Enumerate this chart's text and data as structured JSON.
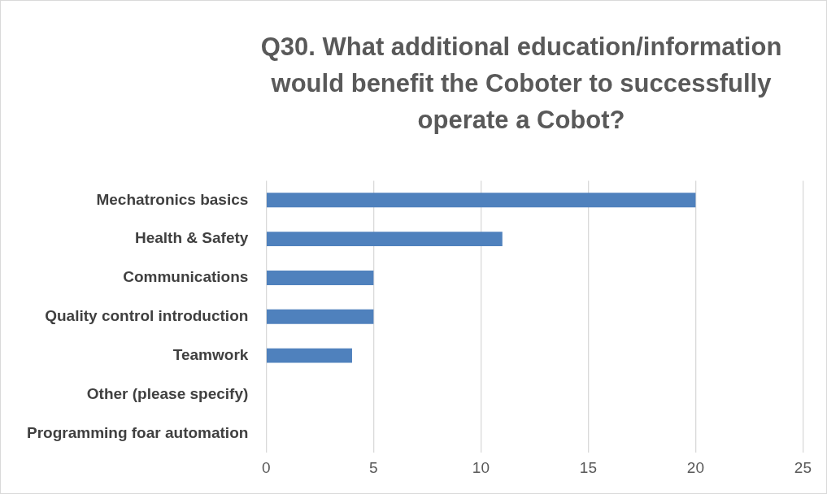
{
  "chart_data": {
    "type": "bar",
    "orientation": "horizontal",
    "title": "Q30. What additional education/information would benefit the Coboter to successfully operate a Cobot?",
    "categories": [
      "Mechatronics basics",
      "Health & Safety",
      "Communications",
      "Quality control introduction",
      "Teamwork",
      "Other (please specify)",
      "Programming foar automation"
    ],
    "values": [
      20,
      11,
      5,
      5,
      4,
      0,
      0
    ],
    "color": "#4f81bd",
    "xlim": [
      0,
      25
    ],
    "xticks": [
      0,
      5,
      10,
      15,
      20,
      25
    ],
    "grid": "x",
    "legend": false
  }
}
